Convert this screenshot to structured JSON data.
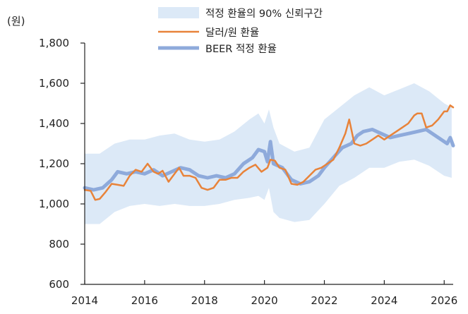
{
  "chart_data": {
    "type": "line",
    "unit_label": "(원)",
    "xlim": [
      2014.0,
      2026.3
    ],
    "ylim": [
      600,
      1800
    ],
    "x_ticks": [
      2014,
      2016,
      2018,
      2020,
      2022,
      2024,
      2026
    ],
    "y_ticks": [
      600,
      800,
      1000,
      1200,
      1400,
      1600,
      1800
    ],
    "y_tick_labels": [
      "600",
      "800",
      "1,000",
      "1,200",
      "1,400",
      "1,600",
      "1,800"
    ],
    "grid": false,
    "legend_position": "top",
    "band": {
      "name": "적정 환율의 90% 신뢰구간",
      "color": "#dce9f7",
      "x": [
        2014.0,
        2014.5,
        2015.0,
        2015.5,
        2016.0,
        2016.5,
        2017.0,
        2017.5,
        2018.0,
        2018.5,
        2019.0,
        2019.5,
        2019.8,
        2020.0,
        2020.15,
        2020.3,
        2020.5,
        2021.0,
        2021.5,
        2022.0,
        2022.5,
        2023.0,
        2023.5,
        2024.0,
        2024.5,
        2025.0,
        2025.5,
        2026.0,
        2026.25
      ],
      "upper": [
        1250,
        1250,
        1300,
        1320,
        1320,
        1340,
        1350,
        1320,
        1310,
        1320,
        1360,
        1420,
        1450,
        1400,
        1470,
        1380,
        1300,
        1260,
        1280,
        1420,
        1480,
        1540,
        1580,
        1540,
        1570,
        1600,
        1560,
        1500,
        1480
      ],
      "lower": [
        900,
        900,
        960,
        990,
        1000,
        990,
        1000,
        990,
        990,
        1000,
        1020,
        1030,
        1040,
        1020,
        1080,
        960,
        930,
        910,
        920,
        1000,
        1090,
        1130,
        1180,
        1180,
        1210,
        1220,
        1190,
        1140,
        1130
      ]
    },
    "series": [
      {
        "name": "달러/원 환율",
        "color": "#e8833a",
        "x": [
          2014.0,
          2014.2,
          2014.35,
          2014.5,
          2014.7,
          2014.9,
          2015.1,
          2015.3,
          2015.5,
          2015.7,
          2015.9,
          2016.1,
          2016.3,
          2016.45,
          2016.6,
          2016.8,
          2017.0,
          2017.15,
          2017.3,
          2017.5,
          2017.7,
          2017.9,
          2018.1,
          2018.3,
          2018.5,
          2018.7,
          2018.9,
          2019.1,
          2019.3,
          2019.5,
          2019.7,
          2019.9,
          2020.1,
          2020.2,
          2020.35,
          2020.5,
          2020.7,
          2020.9,
          2021.1,
          2021.3,
          2021.5,
          2021.7,
          2021.9,
          2022.1,
          2022.3,
          2022.5,
          2022.7,
          2022.83,
          2023.0,
          2023.2,
          2023.4,
          2023.6,
          2023.8,
          2024.0,
          2024.2,
          2024.4,
          2024.6,
          2024.8,
          2025.0,
          2025.1,
          2025.25,
          2025.4,
          2025.6,
          2025.8,
          2026.0,
          2026.1,
          2026.2,
          2026.3
        ],
        "values": [
          1070,
          1065,
          1020,
          1025,
          1060,
          1100,
          1095,
          1090,
          1140,
          1170,
          1160,
          1200,
          1160,
          1150,
          1165,
          1110,
          1150,
          1180,
          1140,
          1140,
          1130,
          1080,
          1070,
          1080,
          1120,
          1120,
          1130,
          1130,
          1160,
          1180,
          1195,
          1160,
          1180,
          1220,
          1215,
          1180,
          1170,
          1100,
          1095,
          1110,
          1140,
          1170,
          1180,
          1200,
          1220,
          1280,
          1350,
          1420,
          1300,
          1290,
          1300,
          1320,
          1340,
          1320,
          1340,
          1360,
          1380,
          1400,
          1440,
          1450,
          1450,
          1380,
          1390,
          1420,
          1460,
          1460,
          1490,
          1480
        ]
      },
      {
        "name": "BEER 적정 환율",
        "color": "#8eaadb",
        "x": [
          2014.0,
          2014.3,
          2014.6,
          2014.9,
          2015.1,
          2015.4,
          2015.7,
          2016.0,
          2016.3,
          2016.6,
          2016.9,
          2017.2,
          2017.5,
          2017.8,
          2018.1,
          2018.4,
          2018.7,
          2019.0,
          2019.3,
          2019.6,
          2019.8,
          2020.0,
          2020.1,
          2020.2,
          2020.3,
          2020.6,
          2020.9,
          2021.2,
          2021.5,
          2021.8,
          2022.0,
          2022.3,
          2022.6,
          2022.9,
          2023.1,
          2023.3,
          2023.6,
          2023.9,
          2024.2,
          2024.5,
          2024.8,
          2025.1,
          2025.4,
          2025.7,
          2026.0,
          2026.1,
          2026.2,
          2026.3
        ],
        "values": [
          1080,
          1070,
          1080,
          1120,
          1160,
          1150,
          1160,
          1150,
          1170,
          1140,
          1160,
          1180,
          1170,
          1140,
          1130,
          1140,
          1130,
          1150,
          1200,
          1230,
          1270,
          1260,
          1210,
          1310,
          1200,
          1180,
          1120,
          1100,
          1110,
          1140,
          1180,
          1230,
          1280,
          1300,
          1340,
          1360,
          1370,
          1350,
          1330,
          1340,
          1350,
          1360,
          1370,
          1340,
          1310,
          1300,
          1330,
          1290
        ]
      }
    ]
  }
}
